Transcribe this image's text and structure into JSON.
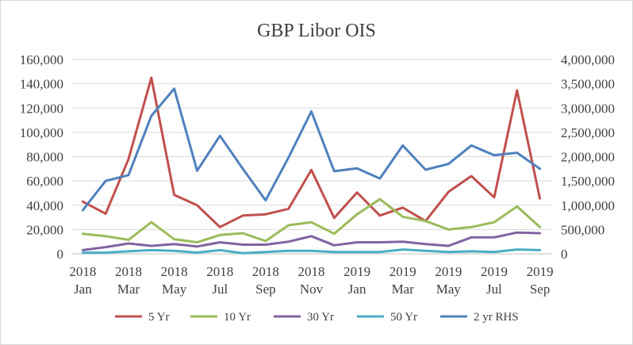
{
  "chart_data": {
    "type": "line",
    "title": "GBP Libor OIS",
    "x": [
      "2018 Jan",
      "2018 Feb",
      "2018 Mar",
      "2018 Apr",
      "2018 May",
      "2018 Jun",
      "2018 Jul",
      "2018 Aug",
      "2018 Sep",
      "2018 Oct",
      "2018 Nov",
      "2018 Dec",
      "2019 Jan",
      "2019 Feb",
      "2019 Mar",
      "2019 Apr",
      "2019 May",
      "2019 Jun",
      "2019 Jul",
      "2019 Aug",
      "2019 Sep"
    ],
    "x_tick_labels": [
      {
        "year": "2018",
        "month": "Jan"
      },
      {
        "year": "2018",
        "month": "Mar"
      },
      {
        "year": "2018",
        "month": "May"
      },
      {
        "year": "2018",
        "month": "Jul"
      },
      {
        "year": "2018",
        "month": "Sep"
      },
      {
        "year": "2018",
        "month": "Nov"
      },
      {
        "year": "2019",
        "month": "Jan"
      },
      {
        "year": "2019",
        "month": "Mar"
      },
      {
        "year": "2019",
        "month": "May"
      },
      {
        "year": "2019",
        "month": "Jul"
      },
      {
        "year": "2019",
        "month": "Sep"
      }
    ],
    "y_left": {
      "ylim": [
        0,
        160000
      ],
      "ticks": [
        "0",
        "20,000",
        "40,000",
        "60,000",
        "80,000",
        "100,000",
        "120,000",
        "140,000",
        "160,000"
      ]
    },
    "y_right": {
      "ylim": [
        0,
        4000000
      ],
      "ticks": [
        "0",
        "500,000",
        "1,000,000",
        "1,500,000",
        "2,000,000",
        "2,500,000",
        "3,000,000",
        "3,500,000",
        "4,000,000"
      ]
    },
    "grid": "horizontal",
    "legend_placement": "bottom",
    "series": [
      {
        "name": "5 Yr",
        "axis": "left",
        "color": "#c0504d",
        "values": [
          43000,
          33000,
          78000,
          145000,
          48500,
          40000,
          22000,
          31500,
          32500,
          37000,
          69000,
          29500,
          50500,
          31500,
          38000,
          27000,
          51000,
          64000,
          46500,
          134500,
          45500
        ]
      },
      {
        "name": "10 Yr",
        "axis": "left",
        "color": "#9bbb59",
        "values": [
          16500,
          14500,
          11500,
          26000,
          12000,
          9500,
          15500,
          17000,
          10500,
          23500,
          26000,
          16500,
          32500,
          45000,
          30500,
          27000,
          20000,
          22000,
          26000,
          39000,
          22000
        ]
      },
      {
        "name": "30 Yr",
        "axis": "left",
        "color": "#8064a2",
        "values": [
          3000,
          5500,
          8500,
          6500,
          8000,
          6000,
          9500,
          7500,
          7500,
          10000,
          14500,
          7000,
          9500,
          9500,
          10000,
          8000,
          6500,
          13500,
          13500,
          17500,
          17000
        ]
      },
      {
        "name": "50 Yr",
        "axis": "left",
        "color": "#4bacc6",
        "values": [
          800,
          1000,
          2000,
          3000,
          2500,
          1000,
          3000,
          500,
          1500,
          2500,
          2500,
          1500,
          1500,
          1500,
          3500,
          2500,
          1500,
          2000,
          1500,
          3500,
          3000
        ]
      },
      {
        "name": "2 yr RHS",
        "axis": "right",
        "color": "#4f81bd",
        "values": [
          900000,
          1500000,
          1620000,
          2840000,
          3400000,
          1710000,
          2430000,
          1750000,
          1100000,
          1980000,
          2930000,
          1700000,
          1760000,
          1550000,
          2230000,
          1730000,
          1850000,
          2230000,
          2030000,
          2080000,
          1750000
        ]
      }
    ]
  }
}
